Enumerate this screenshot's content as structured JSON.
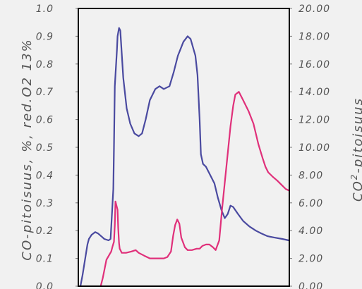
{
  "chart_data": {
    "type": "line",
    "title": "",
    "ylabel_left": "CO-pitoisuus, %, red.O2 13%",
    "ylabel_right": "CO2-pitoisuus",
    "ylabel_right_parts": {
      "prefix": "CO",
      "superscript": "2",
      "suffix": "-pitoisuus"
    },
    "ylim_left": [
      0.0,
      1.0
    ],
    "ylim_right": [
      0.0,
      20.0
    ],
    "yticks_left": [
      "0.0",
      "0.1",
      "0.2",
      "0.3",
      "0.4",
      "0.5",
      "0.6",
      "0.7",
      "0.8",
      "0.9",
      "1.0"
    ],
    "yticks_right": [
      "0.00",
      "2.00",
      "4.00",
      "6.00",
      "8.00",
      "10.00",
      "12.00",
      "14.00",
      "16.00",
      "18.00",
      "20.00"
    ],
    "xlim": [
      0,
      100
    ],
    "grid": false,
    "colors": {
      "co": "#4a4aa0",
      "co2": "#e0307a",
      "frame": "#000000"
    },
    "series": [
      {
        "axis": "left",
        "color": "#4a4aa0",
        "x": [
          1.0,
          2.0,
          4.3,
          5.0,
          6.3,
          8.0,
          9.3,
          11.6,
          12.3,
          14.3,
          15.3,
          16.6,
          16.9,
          17.3,
          18.3,
          18.6,
          19.3,
          19.9,
          21.3,
          22.9,
          24.6,
          26.6,
          28.6,
          30.2,
          31.9,
          33.9,
          36.5,
          38.5,
          40.5,
          43.2,
          45.2,
          47.2,
          49.8,
          51.8,
          53.2,
          55.5,
          56.5,
          57.5,
          58.1,
          59.1,
          60.5,
          62.5,
          64.5,
          66.1,
          67.8,
          69.4,
          70.8,
          72.1,
          73.4,
          75.7,
          78.1,
          81.1,
          84.1,
          86.7,
          89.7,
          93.0,
          96.7,
          99.7
        ],
        "y": [
          0.0,
          0.04,
          0.15,
          0.17,
          0.185,
          0.195,
          0.19,
          0.175,
          0.17,
          0.165,
          0.17,
          0.35,
          0.5,
          0.72,
          0.85,
          0.9,
          0.93,
          0.92,
          0.75,
          0.64,
          0.585,
          0.55,
          0.54,
          0.55,
          0.6,
          0.67,
          0.71,
          0.72,
          0.71,
          0.72,
          0.77,
          0.83,
          0.88,
          0.9,
          0.89,
          0.83,
          0.76,
          0.6,
          0.475,
          0.44,
          0.43,
          0.4,
          0.37,
          0.32,
          0.275,
          0.245,
          0.26,
          0.29,
          0.285,
          0.26,
          0.235,
          0.215,
          0.2,
          0.19,
          0.18,
          0.175,
          0.17,
          0.165
        ]
      },
      {
        "axis": "right",
        "color": "#e0307a",
        "x": [
          10.6,
          11.6,
          13.3,
          15.6,
          16.3,
          16.9,
          17.3,
          17.6,
          18.6,
          18.9,
          19.3,
          19.6,
          20.6,
          22.6,
          25.2,
          27.2,
          28.6,
          31.2,
          33.9,
          37.2,
          40.5,
          42.2,
          43.9,
          44.9,
          45.9,
          46.9,
          47.9,
          48.8,
          50.5,
          51.8,
          53.8,
          56.1,
          57.5,
          58.8,
          60.5,
          62.1,
          63.8,
          65.1,
          66.8,
          68.1,
          70.1,
          72.1,
          73.4,
          74.4,
          76.1,
          78.1,
          80.7,
          83.0,
          85.4,
          87.4,
          88.7,
          90.0,
          92.0,
          94.3,
          96.3,
          98.3,
          99.7
        ],
        "y": [
          0.0,
          0.6,
          1.9,
          2.5,
          2.9,
          3.2,
          4.4,
          6.1,
          5.5,
          4.2,
          3.1,
          2.7,
          2.4,
          2.4,
          2.5,
          2.6,
          2.4,
          2.2,
          2.0,
          2.0,
          2.0,
          2.1,
          2.5,
          3.6,
          4.4,
          4.8,
          4.5,
          3.5,
          2.8,
          2.6,
          2.6,
          2.7,
          2.7,
          2.9,
          3.0,
          3.0,
          2.8,
          2.6,
          3.3,
          5.5,
          8.5,
          11.5,
          13.0,
          13.8,
          14.0,
          13.4,
          12.6,
          11.7,
          10.2,
          9.2,
          8.6,
          8.2,
          7.9,
          7.6,
          7.3,
          7.0,
          6.9
        ]
      }
    ]
  }
}
